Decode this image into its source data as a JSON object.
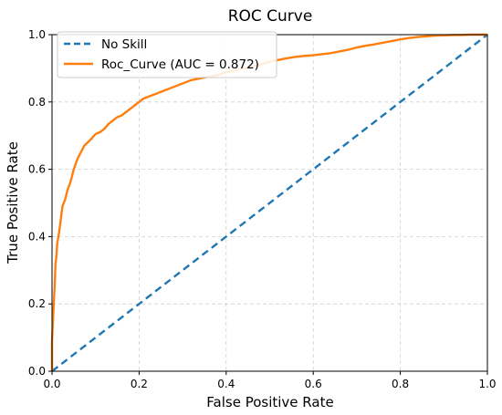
{
  "chart_data": {
    "type": "line",
    "title": "ROC Curve",
    "xlabel": "False Positive Rate",
    "ylabel": "True Positive Rate",
    "xlim": [
      0.0,
      1.0
    ],
    "ylim": [
      0.0,
      1.0
    ],
    "xticks": [
      "0.0",
      "0.2",
      "0.4",
      "0.6",
      "0.8",
      "1.0"
    ],
    "yticks": [
      "0.0",
      "0.2",
      "0.4",
      "0.6",
      "0.8",
      "1.0"
    ],
    "grid": true,
    "legend_position": "upper-left",
    "series": [
      {
        "name": "No Skill",
        "style": "dashed",
        "color": "#1f77b4",
        "x": [
          0.0,
          1.0
        ],
        "y": [
          0.0,
          1.0
        ]
      },
      {
        "name": "Roc_Curve (AUC = 0.872)",
        "style": "solid",
        "color": "#ff7f0e",
        "x": [
          0.0,
          0.0,
          0.004,
          0.006,
          0.008,
          0.01,
          0.012,
          0.016,
          0.02,
          0.024,
          0.03,
          0.036,
          0.042,
          0.05,
          0.058,
          0.066,
          0.074,
          0.082,
          0.09,
          0.1,
          0.11,
          0.12,
          0.13,
          0.14,
          0.15,
          0.16,
          0.17,
          0.18,
          0.19,
          0.2,
          0.21,
          0.22,
          0.24,
          0.26,
          0.28,
          0.3,
          0.32,
          0.34,
          0.36,
          0.38,
          0.4,
          0.42,
          0.44,
          0.46,
          0.48,
          0.5,
          0.52,
          0.54,
          0.56,
          0.58,
          0.6,
          0.62,
          0.64,
          0.66,
          0.68,
          0.7,
          0.72,
          0.74,
          0.76,
          0.78,
          0.8,
          0.82,
          0.84,
          0.86,
          0.88,
          0.9,
          0.92,
          0.94,
          0.96,
          0.98,
          1.0
        ],
        "y": [
          0.0,
          0.09,
          0.2,
          0.25,
          0.32,
          0.34,
          0.38,
          0.41,
          0.45,
          0.49,
          0.51,
          0.54,
          0.56,
          0.6,
          0.63,
          0.65,
          0.67,
          0.68,
          0.69,
          0.705,
          0.71,
          0.72,
          0.735,
          0.745,
          0.755,
          0.76,
          0.77,
          0.78,
          0.79,
          0.8,
          0.81,
          0.815,
          0.825,
          0.835,
          0.845,
          0.855,
          0.865,
          0.87,
          0.875,
          0.88,
          0.888,
          0.895,
          0.9,
          0.905,
          0.912,
          0.92,
          0.925,
          0.93,
          0.934,
          0.937,
          0.939,
          0.942,
          0.945,
          0.95,
          0.955,
          0.962,
          0.967,
          0.971,
          0.976,
          0.981,
          0.986,
          0.99,
          0.993,
          0.995,
          0.997,
          0.998,
          0.999,
          0.999,
          1.0,
          1.0,
          1.0
        ]
      }
    ]
  }
}
